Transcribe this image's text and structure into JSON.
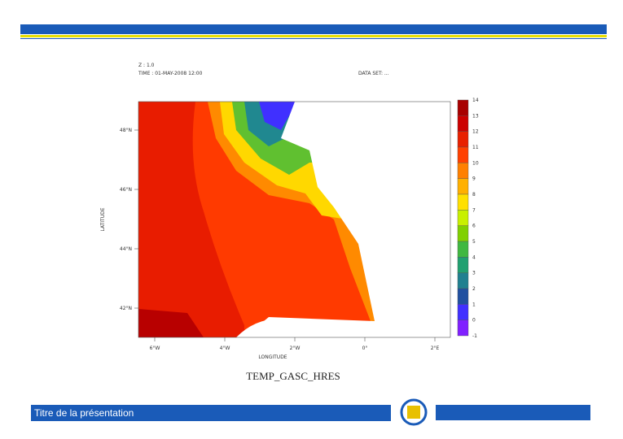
{
  "plot": {
    "header": [
      "Z : 1.0",
      "TIME : 01-MAY-2008 12:00"
    ],
    "dataset": "DATA SET: ...",
    "title": "TEMP_GASC_HRES",
    "xlabel": "LONGITUDE",
    "ylabel": "LATITUDE",
    "xticks": [
      "6°W",
      "4°W",
      "2°W",
      "0°",
      "2°E"
    ],
    "yticks": [
      "48°N",
      "46°N",
      "44°N",
      "42°N"
    ],
    "colorbar": [
      "14",
      "13",
      "12",
      "11",
      "10",
      "9",
      "8",
      "7",
      "6",
      "5",
      "4",
      "3",
      "2",
      "1",
      "0",
      "-1"
    ]
  },
  "footer": {
    "title": "Titre de la présentation"
  }
}
